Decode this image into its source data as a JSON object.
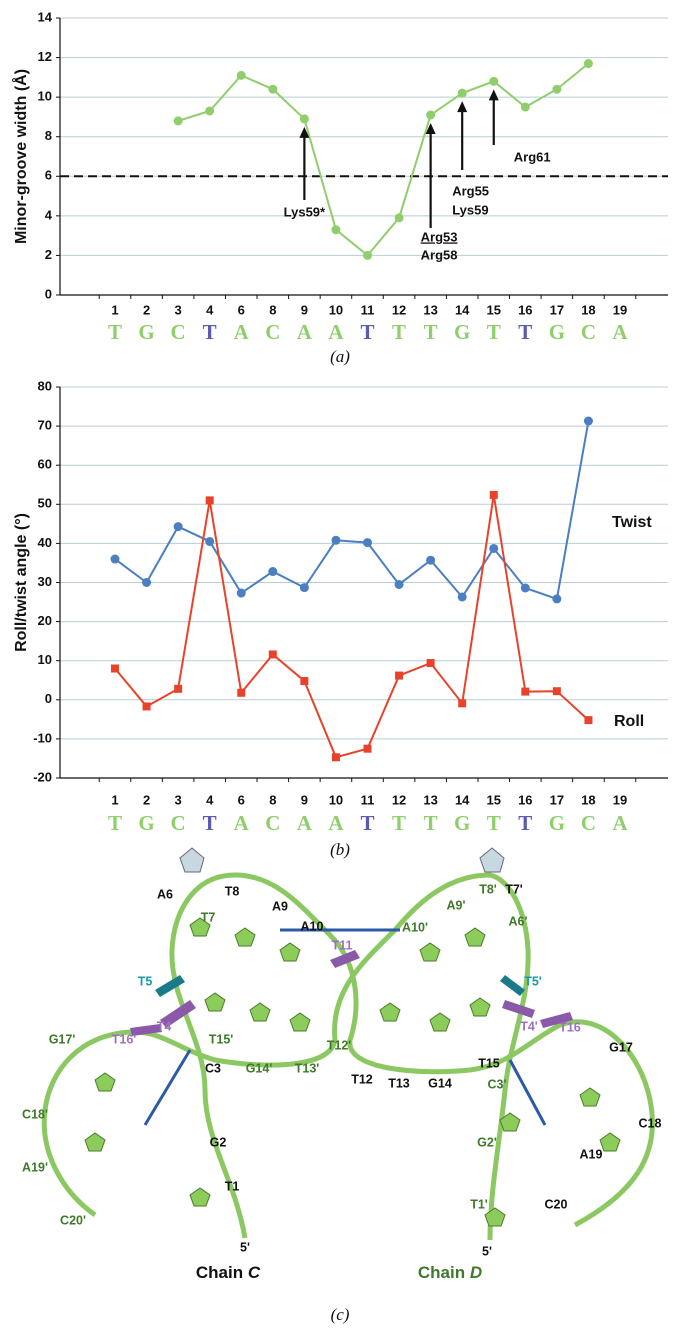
{
  "chart_data": [
    {
      "type": "line",
      "y_label": "Minor-groove width (Å)",
      "caption": "(a)",
      "categories": [
        "1",
        "2",
        "3",
        "4",
        "6",
        "8",
        "9",
        "10",
        "11",
        "12",
        "13",
        "14",
        "15",
        "16",
        "17",
        "18",
        "19"
      ],
      "sequence": [
        "T",
        "G",
        "C",
        "T",
        "A",
        "C",
        "A",
        "A",
        "T",
        "T",
        "T",
        "G",
        "T",
        "T",
        "G",
        "C",
        "A"
      ],
      "sequence_colors": [
        "#8fce6b",
        "#8fce6b",
        "#8fce6b",
        "#5b5bb0",
        "#8fce6b",
        "#8fce6b",
        "#8fce6b",
        "#8fce6b",
        "#5b5bb0",
        "#8fce6b",
        "#8fce6b",
        "#8fce6b",
        "#8fce6b",
        "#5b5bb0",
        "#8fce6b",
        "#8fce6b",
        "#8fce6b"
      ],
      "series": [
        {
          "color": "#8fce6b",
          "marker": "circle",
          "values": [
            null,
            null,
            8.8,
            9.3,
            11.1,
            10.4,
            8.9,
            3.3,
            2.0,
            3.9,
            9.1,
            10.2,
            10.8,
            9.5,
            10.4,
            11.7,
            null
          ]
        }
      ],
      "reference_line": 6,
      "annotations": [
        {
          "at": "9",
          "lines": [
            "Lys59*"
          ],
          "underlined": [
            false
          ]
        },
        {
          "at": "13",
          "lines": [
            "Arg53",
            "Arg58"
          ],
          "underlined": [
            true,
            false
          ]
        },
        {
          "at": "14",
          "lines": [
            "Arg55",
            "Lys59"
          ],
          "underlined": [
            false,
            false
          ]
        },
        {
          "at": "15",
          "lines": [
            "Arg61"
          ],
          "underlined": [
            false
          ]
        }
      ],
      "ylim": [
        0,
        14
      ],
      "yticks": [
        0,
        2,
        4,
        6,
        8,
        10,
        12,
        14
      ],
      "grid": true
    },
    {
      "type": "line",
      "y_label": "Roll/twist angle (°)",
      "caption": "(b)",
      "categories": [
        "1",
        "2",
        "3",
        "4",
        "6",
        "8",
        "9",
        "10",
        "11",
        "12",
        "13",
        "14",
        "15",
        "16",
        "17",
        "18",
        "19"
      ],
      "sequence": [
        "T",
        "G",
        "C",
        "T",
        "A",
        "C",
        "A",
        "A",
        "T",
        "T",
        "T",
        "G",
        "T",
        "T",
        "G",
        "C",
        "A"
      ],
      "sequence_colors": [
        "#8fce6b",
        "#8fce6b",
        "#8fce6b",
        "#5b5bb0",
        "#8fce6b",
        "#8fce6b",
        "#8fce6b",
        "#8fce6b",
        "#5b5bb0",
        "#8fce6b",
        "#8fce6b",
        "#8fce6b",
        "#8fce6b",
        "#5b5bb0",
        "#8fce6b",
        "#8fce6b",
        "#8fce6b"
      ],
      "series": [
        {
          "name": "Twist",
          "color": "#4a7fc1",
          "marker": "circle",
          "values": [
            36,
            30,
            44.3,
            40.5,
            27.3,
            32.8,
            28.7,
            40.8,
            40.2,
            29.5,
            35.7,
            26.3,
            38.7,
            28.6,
            25.8,
            71.3,
            null
          ]
        },
        {
          "name": "Roll",
          "color": "#e8432a",
          "marker": "square",
          "values": [
            8,
            -1.7,
            2.8,
            51,
            1.8,
            11.6,
            4.8,
            -14.7,
            -12.5,
            6.2,
            9.4,
            -0.9,
            52.4,
            2.1,
            2.2,
            -5.2,
            null
          ]
        }
      ],
      "ylim": [
        -20,
        80
      ],
      "yticks": [
        -20,
        -10,
        0,
        10,
        20,
        30,
        40,
        50,
        60,
        70,
        80
      ],
      "grid": true
    }
  ],
  "panel_c": {
    "caption": "(c)",
    "labels": [
      {
        "text": "T8",
        "color": "#111"
      },
      {
        "text": "A9",
        "color": "#111"
      },
      {
        "text": "A10",
        "color": "#111"
      },
      {
        "text": "A6",
        "color": "#111"
      },
      {
        "text": "T7",
        "color": "#3e7a2a"
      },
      {
        "text": "T11",
        "color": "#a070c0"
      },
      {
        "text": "A10'",
        "color": "#3e7a2a"
      },
      {
        "text": "A9'",
        "color": "#3e7a2a"
      },
      {
        "text": "T8'",
        "color": "#3e7a2a"
      },
      {
        "text": "T7'",
        "color": "#111"
      },
      {
        "text": "A6'",
        "color": "#3e7a2a"
      },
      {
        "text": "T5",
        "color": "#1a9aa8"
      },
      {
        "text": "T5'",
        "color": "#1a9aa8"
      },
      {
        "text": "T4",
        "color": "#a070c0"
      },
      {
        "text": "T16'",
        "color": "#a070c0"
      },
      {
        "text": "G17'",
        "color": "#3e7a2a"
      },
      {
        "text": "T15'",
        "color": "#3e7a2a"
      },
      {
        "text": "C3",
        "color": "#111"
      },
      {
        "text": "G14'",
        "color": "#3e7a2a"
      },
      {
        "text": "T13'",
        "color": "#3e7a2a"
      },
      {
        "text": "T12'",
        "color": "#3e7a2a"
      },
      {
        "text": "T12",
        "color": "#111"
      },
      {
        "text": "T13",
        "color": "#111"
      },
      {
        "text": "G14",
        "color": "#111"
      },
      {
        "text": "T15",
        "color": "#111"
      },
      {
        "text": "T4'",
        "color": "#a070c0"
      },
      {
        "text": "T16",
        "color": "#a070c0"
      },
      {
        "text": "G17",
        "color": "#111"
      },
      {
        "text": "C3'",
        "color": "#3e7a2a"
      },
      {
        "text": "C18",
        "color": "#111"
      },
      {
        "text": "C18'",
        "color": "#3e7a2a"
      },
      {
        "text": "A19'",
        "color": "#3e7a2a"
      },
      {
        "text": "G2",
        "color": "#111"
      },
      {
        "text": "G2'",
        "color": "#3e7a2a"
      },
      {
        "text": "A19",
        "color": "#111"
      },
      {
        "text": "T1",
        "color": "#111"
      },
      {
        "text": "C20'",
        "color": "#3e7a2a"
      },
      {
        "text": "T1'",
        "color": "#3e7a2a"
      },
      {
        "text": "C20",
        "color": "#111"
      },
      {
        "text": "5'",
        "color": "#111"
      },
      {
        "text": "5'",
        "color": "#111"
      }
    ],
    "chain_c": {
      "text": "Chain",
      "letter": "C",
      "color": "#111"
    },
    "chain_d": {
      "text": "Chain",
      "letter": "D",
      "color": "#3e7a2a"
    }
  }
}
